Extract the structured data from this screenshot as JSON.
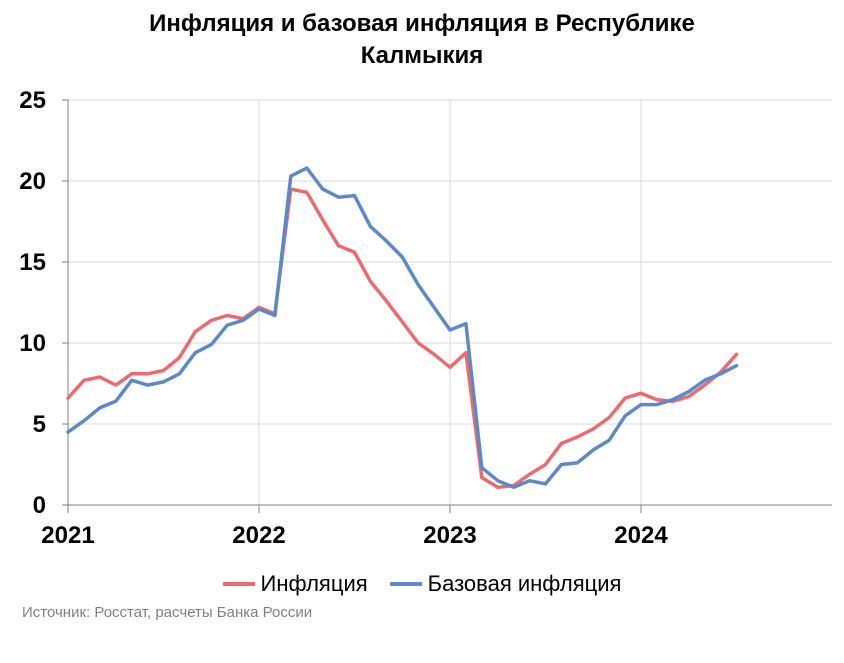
{
  "title_line1": "Инфляция и базовая инфляция в Республике",
  "title_line2": "Калмыкия",
  "source": "Источник: Росстат, расчеты Банка России",
  "chart_data": {
    "type": "line",
    "title": "Инфляция и базовая инфляция в Республике Калмыкия",
    "xlabel": "",
    "ylabel": "",
    "ylim": [
      0,
      25
    ],
    "yticks": [
      0,
      5,
      10,
      15,
      20,
      25
    ],
    "xticks": [
      "2021",
      "2022",
      "2023",
      "2024"
    ],
    "grid": true,
    "legend": "bottom",
    "x": [
      "2021-01",
      "2021-02",
      "2021-03",
      "2021-04",
      "2021-05",
      "2021-06",
      "2021-07",
      "2021-08",
      "2021-09",
      "2021-10",
      "2021-11",
      "2021-12",
      "2022-01",
      "2022-02",
      "2022-03",
      "2022-04",
      "2022-05",
      "2022-06",
      "2022-07",
      "2022-08",
      "2022-09",
      "2022-10",
      "2022-11",
      "2022-12",
      "2023-01",
      "2023-02",
      "2023-03",
      "2023-04",
      "2023-05",
      "2023-06",
      "2023-07",
      "2023-08",
      "2023-09",
      "2023-10",
      "2023-11",
      "2023-12",
      "2024-01",
      "2024-02",
      "2024-03",
      "2024-04",
      "2024-05",
      "2024-06",
      "2024-07"
    ],
    "series": [
      {
        "name": "Инфляция",
        "color": "#ec6b6e",
        "values": [
          6.6,
          7.7,
          7.9,
          7.4,
          8.1,
          8.1,
          8.3,
          9.1,
          10.7,
          11.4,
          11.7,
          11.5,
          12.2,
          11.8,
          19.5,
          19.3,
          17.6,
          16.0,
          15.6,
          13.8,
          12.6,
          11.3,
          10.0,
          9.3,
          8.5,
          9.4,
          1.7,
          1.1,
          1.2,
          1.9,
          2.5,
          3.8,
          4.2,
          4.7,
          5.4,
          6.6,
          6.9,
          6.5,
          6.4,
          6.7,
          7.4,
          8.2,
          9.3
        ]
      },
      {
        "name": "Базовая инфляция",
        "color": "#5b8ac6",
        "values": [
          4.5,
          5.2,
          6.0,
          6.4,
          7.7,
          7.4,
          7.6,
          8.1,
          9.4,
          9.9,
          11.1,
          11.4,
          12.1,
          11.7,
          20.3,
          20.8,
          19.5,
          19.0,
          19.1,
          17.2,
          16.3,
          15.3,
          13.6,
          12.2,
          10.8,
          11.2,
          2.3,
          1.5,
          1.1,
          1.5,
          1.3,
          2.5,
          2.6,
          3.4,
          4.0,
          5.5,
          6.2,
          6.2,
          6.5,
          7.0,
          7.7,
          8.1,
          8.6
        ]
      }
    ]
  }
}
